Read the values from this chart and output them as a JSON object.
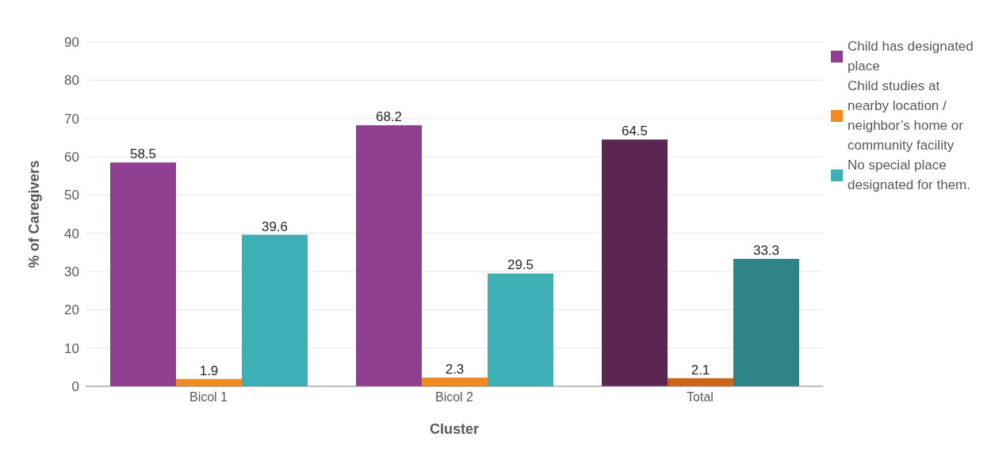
{
  "chart_data": {
    "type": "bar",
    "xlabel": "Cluster",
    "ylabel": "% of Caregivers",
    "categories": [
      "Bicol 1",
      "Bicol 2",
      "Total"
    ],
    "series": [
      {
        "name": "Child has designated place",
        "color": "#8e3f8f",
        "colors": [
          "#8e3f8f",
          "#8e3f8f",
          "#5a2752"
        ],
        "values": [
          58.5,
          68.2,
          64.5
        ]
      },
      {
        "name": "Child studies at nearby location / neighbor’s home or community facility",
        "color": "#f08a24",
        "colors": [
          "#f08a24",
          "#f08a24",
          "#c8661a"
        ],
        "values": [
          1.9,
          2.3,
          2.1
        ]
      },
      {
        "name": "No special place designated for them.",
        "color": "#3cb0b4",
        "colors": [
          "#3cb0b4",
          "#3cb0b4",
          "#2e8486"
        ],
        "values": [
          39.6,
          29.5,
          33.3
        ]
      }
    ],
    "ylim": [
      0,
      90
    ],
    "yticks": [
      0,
      10,
      20,
      30,
      40,
      50,
      60,
      70,
      80,
      90
    ],
    "grid": "y",
    "legend": "right",
    "data_labels": true
  }
}
